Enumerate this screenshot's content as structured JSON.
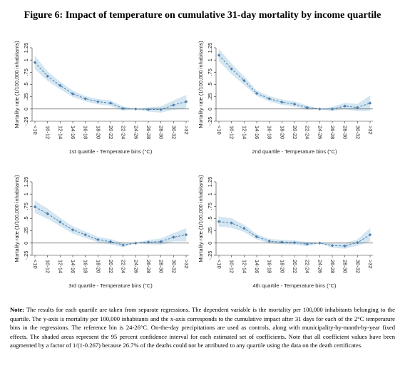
{
  "title": "Figure 6: Impact of temperature on cumulative 31-day mortality by income quartile",
  "chart_data": [
    {
      "type": "line",
      "y_label": "Mortality rate (1/100,000 inhabitants)",
      "x_label": "1st quartile - Temperature bins (°C)",
      "categories": [
        "<10",
        "10-12",
        "12-14",
        "14-16",
        "16-18",
        "18-20",
        "20-22",
        "22-24",
        "24-26",
        "26-28",
        "28-30",
        "30-32",
        ">32"
      ],
      "values": [
        0.95,
        0.67,
        0.48,
        0.31,
        0.21,
        0.15,
        0.12,
        0.01,
        0,
        -0.01,
        -0.01,
        0.08,
        0.15
      ],
      "ci_lower": [
        0.82,
        0.58,
        0.41,
        0.25,
        0.16,
        0.1,
        0.07,
        -0.03,
        0,
        -0.05,
        -0.07,
        -0.01,
        0.02
      ],
      "ci_upper": [
        1.08,
        0.76,
        0.55,
        0.37,
        0.26,
        0.2,
        0.17,
        0.05,
        0,
        0.03,
        0.05,
        0.17,
        0.28
      ],
      "color": "#4f7fab",
      "band_color": "#d3e6f2",
      "zero_line": true,
      "ylim": [
        -0.25,
        1.25
      ],
      "yticks": [
        {
          "value": -0.25,
          "label": "-.25"
        },
        0,
        {
          "value": 0.25,
          "label": ".25"
        },
        {
          "value": 0.5,
          "label": ".5"
        },
        {
          "value": 0.75,
          "label": ".75"
        },
        1,
        1.25
      ]
    },
    {
      "type": "line",
      "y_label": "Mortality rate (1/100,000 inhabitants)",
      "x_label": "2nd quartile - Temperature bins (°C)",
      "categories": [
        "<10",
        "10-12",
        "12-14",
        "14-16",
        "16-18",
        "18-20",
        "20-22",
        "22-24",
        "24-26",
        "26-28",
        "28-30",
        "30-32",
        ">32"
      ],
      "values": [
        1.1,
        0.82,
        0.58,
        0.32,
        0.21,
        0.14,
        0.1,
        0.03,
        0,
        0,
        0.06,
        0.03,
        0.12
      ],
      "ci_lower": [
        0.98,
        0.72,
        0.5,
        0.27,
        0.16,
        0.09,
        0.05,
        -0.01,
        0,
        -0.04,
        0,
        -0.04,
        -0.03
      ],
      "ci_upper": [
        1.22,
        0.92,
        0.66,
        0.37,
        0.26,
        0.19,
        0.15,
        0.07,
        0,
        0.04,
        0.12,
        0.1,
        0.27
      ],
      "color": "#4f7fab",
      "band_color": "#d3e6f2",
      "zero_line": true,
      "ylim": [
        -0.25,
        1.25
      ],
      "yticks": [
        {
          "value": -0.25,
          "label": "-.25"
        },
        0,
        {
          "value": 0.25,
          "label": ".25"
        },
        {
          "value": 0.5,
          "label": ".5"
        },
        {
          "value": 0.75,
          "label": ".75"
        },
        1,
        1.25
      ]
    },
    {
      "type": "line",
      "y_label": "Mortality rate (1/100,000 inhabitants)",
      "x_label": "3rd quartile - Temperature bins (°C)",
      "categories": [
        "<10",
        "10-12",
        "12-14",
        "14-16",
        "16-18",
        "18-20",
        "20-22",
        "22-24",
        "24-26",
        "26-28",
        "28-30",
        "30-32",
        ">32"
      ],
      "values": [
        0.74,
        0.6,
        0.43,
        0.27,
        0.17,
        0.07,
        0.03,
        -0.04,
        0,
        0.02,
        0.03,
        0.12,
        0.17
      ],
      "ci_lower": [
        0.62,
        0.5,
        0.35,
        0.2,
        0.11,
        0.02,
        -0.02,
        -0.08,
        0,
        -0.02,
        -0.03,
        0.04,
        0.04
      ],
      "ci_upper": [
        0.86,
        0.7,
        0.51,
        0.34,
        0.23,
        0.12,
        0.08,
        0,
        0,
        0.06,
        0.09,
        0.2,
        0.3
      ],
      "color": "#4f7fab",
      "band_color": "#d3e6f2",
      "zero_line": true,
      "ylim": [
        -0.25,
        1.25
      ],
      "yticks": [
        {
          "value": -0.25,
          "label": "-.25"
        },
        0,
        {
          "value": 0.25,
          "label": ".25"
        },
        {
          "value": 0.5,
          "label": ".5"
        },
        {
          "value": 0.75,
          "label": ".75"
        },
        1,
        1.25
      ]
    },
    {
      "type": "line",
      "y_label": "Mortality rate (1/100,000 inhabitants)",
      "x_label": "4th quartile - Temperature bins (°C)",
      "categories": [
        "<10",
        "10-12",
        "12-14",
        "14-16",
        "16-18",
        "18-20",
        "20-22",
        "22-24",
        "24-26",
        "26-28",
        "28-30",
        "30-32",
        ">32"
      ],
      "values": [
        0.44,
        0.41,
        0.3,
        0.13,
        0.04,
        0.02,
        0.01,
        -0.02,
        0,
        -0.05,
        -0.06,
        0.01,
        0.17
      ],
      "ci_lower": [
        0.34,
        0.32,
        0.23,
        0.08,
        0,
        -0.02,
        -0.03,
        -0.06,
        0,
        -0.09,
        -0.11,
        -0.05,
        0.04
      ],
      "ci_upper": [
        0.54,
        0.5,
        0.37,
        0.18,
        0.08,
        0.06,
        0.05,
        0.02,
        0,
        -0.01,
        -0.01,
        0.07,
        0.3
      ],
      "color": "#4f7fab",
      "band_color": "#d3e6f2",
      "zero_line": true,
      "ylim": [
        -0.25,
        1.25
      ],
      "yticks": [
        {
          "value": -0.25,
          "label": "-.25"
        },
        0,
        {
          "value": 0.25,
          "label": ".25"
        },
        {
          "value": 0.5,
          "label": ".5"
        },
        {
          "value": 0.75,
          "label": ".75"
        },
        1,
        1.25
      ]
    }
  ],
  "note": {
    "label": "Note:",
    "text": "The results for each quartile are taken from separate regressions. The dependent variable is the mortality per 100,000 inhabitants belonging to the quartile. The y-axis is mortality per 100,000 inhabitants and the x-axis corresponds to the cumulative impact after 31 days for each of the 2°C temperature bins in the regressions. The reference bin is 24-26°C. On-the-day precipitations are used as controls, along with municipality-by-month-by-year fixed effects. The shaded areas represent the 95 percent confidence interval for each estimated set of coefficients. Note that all coefficient values have been augmented by a factor of 1/(1-0.267) because 26.7% of the deaths could not be attributed to any quartile using the data on the death certificates."
  }
}
